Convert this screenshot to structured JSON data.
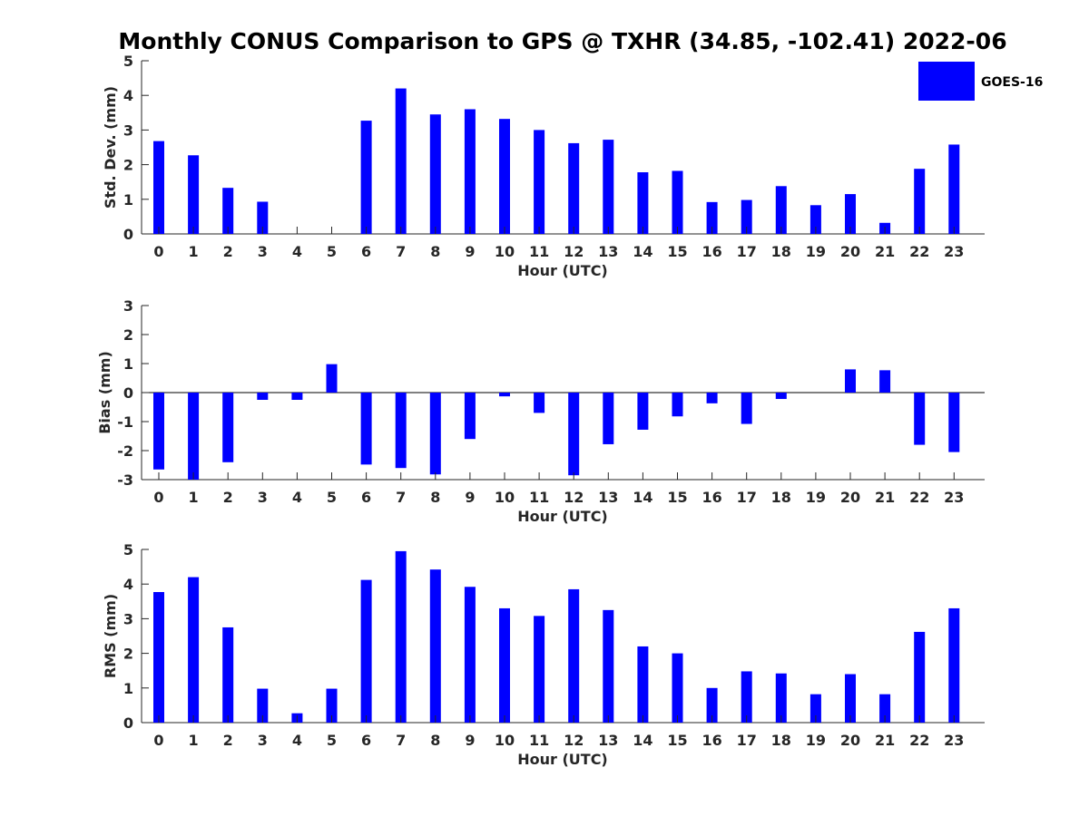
{
  "figure": {
    "title": "Monthly CONUS Comparison to GPS @ TXHR (34.85, -102.41) 2022-06"
  },
  "legend": {
    "label": "GOES-16",
    "color": "#0000ff",
    "placement": "top-right"
  },
  "chart_data": [
    {
      "type": "bar",
      "xlabel": "Hour (UTC)",
      "ylabel": "Std. Dev. (mm)",
      "ylim": [
        0,
        5
      ],
      "yticks": [
        0,
        1,
        2,
        3,
        4,
        5
      ],
      "categories": [
        "0",
        "1",
        "2",
        "3",
        "4",
        "5",
        "6",
        "7",
        "8",
        "9",
        "10",
        "11",
        "12",
        "13",
        "14",
        "15",
        "16",
        "17",
        "18",
        "19",
        "20",
        "21",
        "22",
        "23"
      ],
      "series": [
        {
          "name": "GOES-16",
          "color": "#0000ff",
          "values": [
            2.68,
            2.27,
            1.33,
            0.93,
            0,
            0,
            3.27,
            4.2,
            3.45,
            3.6,
            3.32,
            3.0,
            2.62,
            2.72,
            1.78,
            1.82,
            0.92,
            0.98,
            1.38,
            0.83,
            1.15,
            0.32,
            1.88,
            2.58
          ]
        }
      ]
    },
    {
      "type": "bar",
      "xlabel": "Hour (UTC)",
      "ylabel": "Bias (mm)",
      "ylim": [
        -3,
        3
      ],
      "yticks": [
        -3,
        -2,
        -1,
        0,
        1,
        2,
        3
      ],
      "categories": [
        "0",
        "1",
        "2",
        "3",
        "4",
        "5",
        "6",
        "7",
        "8",
        "9",
        "10",
        "11",
        "12",
        "13",
        "14",
        "15",
        "16",
        "17",
        "18",
        "19",
        "20",
        "21",
        "22",
        "23"
      ],
      "series": [
        {
          "name": "GOES-16",
          "color": "#0000ff",
          "values": [
            -2.65,
            -3.0,
            -2.4,
            -0.25,
            -0.25,
            0.98,
            -2.48,
            -2.6,
            -2.82,
            -1.6,
            -0.13,
            -0.7,
            -2.85,
            -1.78,
            -1.28,
            -0.82,
            -0.37,
            -1.08,
            -0.22,
            0,
            0.8,
            0.77,
            -1.8,
            -2.05
          ]
        }
      ]
    },
    {
      "type": "bar",
      "xlabel": "Hour (UTC)",
      "ylabel": "RMS (mm)",
      "ylim": [
        0,
        5
      ],
      "yticks": [
        0,
        1,
        2,
        3,
        4,
        5
      ],
      "categories": [
        "0",
        "1",
        "2",
        "3",
        "4",
        "5",
        "6",
        "7",
        "8",
        "9",
        "10",
        "11",
        "12",
        "13",
        "14",
        "15",
        "16",
        "17",
        "18",
        "19",
        "20",
        "21",
        "22",
        "23"
      ],
      "series": [
        {
          "name": "GOES-16",
          "color": "#0000ff",
          "values": [
            3.77,
            4.2,
            2.75,
            0.98,
            0.27,
            0.98,
            4.12,
            4.95,
            4.42,
            3.92,
            3.3,
            3.08,
            3.85,
            3.25,
            2.2,
            2.0,
            1.0,
            1.48,
            1.42,
            0.82,
            1.4,
            0.82,
            2.62,
            3.3
          ]
        }
      ]
    }
  ]
}
